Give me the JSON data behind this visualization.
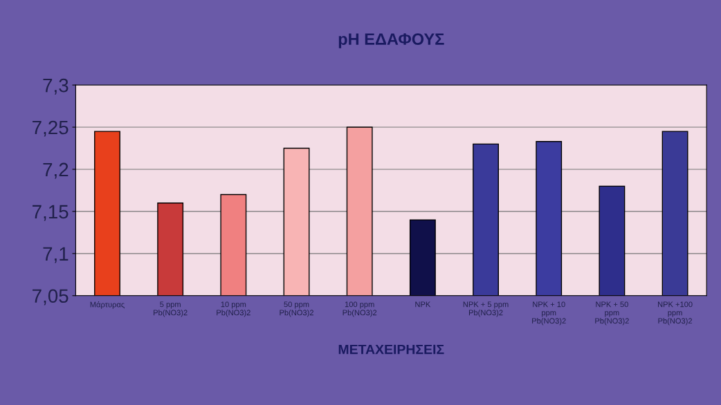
{
  "chart_data": {
    "type": "bar",
    "title": "pH ΕΔΑΦΟΥΣ",
    "xlabel": "ΜΕΤΑΧΕΙΡΗΣΕΙΣ",
    "categories": [
      "Μάρτυρας",
      "5 ppm\nPb(NO3)2",
      "10 ppm\nPb(NO3)2",
      "50 ppm\nPb(NO3)2",
      "100 ppm\nPb(NO3)2",
      "NPK",
      "NPK + 5 ppm\nPb(NO3)2",
      "NPK + 10\nppm\nPb(NO3)2",
      "NPK + 50\nppm\nPb(NO3)2",
      "NPK +100\nppm\nPb(NO3)2"
    ],
    "values": [
      7.245,
      7.16,
      7.17,
      7.225,
      7.25,
      7.14,
      7.23,
      7.233,
      7.18,
      7.245
    ],
    "colors": [
      "#e8401c",
      "#c83a3a",
      "#f08080",
      "#f8b4b4",
      "#f4a0a0",
      "#10104a",
      "#3a3a9a",
      "#3c3ca0",
      "#2e2e8c",
      "#3a3a96"
    ],
    "ylim": [
      7.05,
      7.3
    ],
    "yticks": [
      {
        "value": 7.05,
        "label": "7,05"
      },
      {
        "value": 7.1,
        "label": "7,1"
      },
      {
        "value": 7.15,
        "label": "7,15"
      },
      {
        "value": 7.2,
        "label": "7,2"
      },
      {
        "value": 7.25,
        "label": "7,25"
      },
      {
        "value": 7.3,
        "label": "7,3"
      }
    ],
    "grid": "y",
    "legend": false
  }
}
